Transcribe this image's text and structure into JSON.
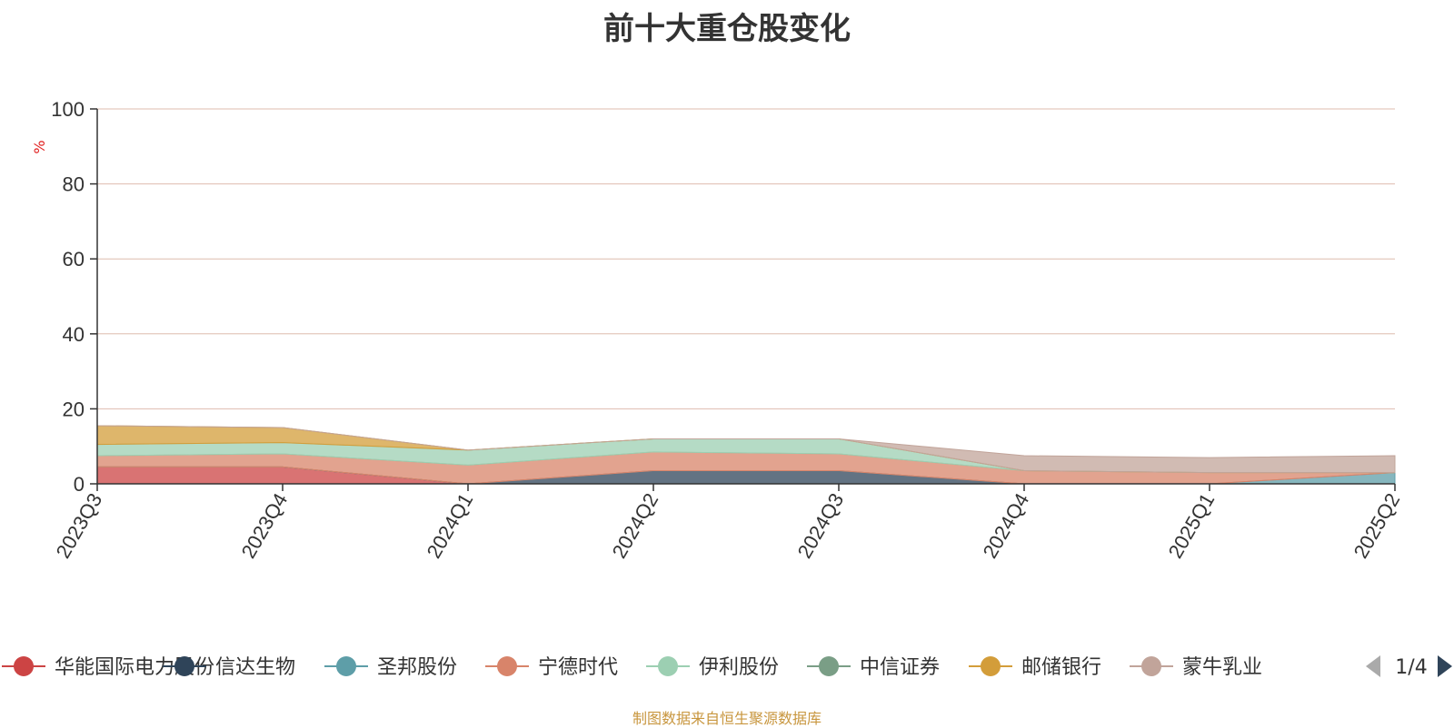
{
  "chart_data": {
    "type": "area",
    "title": "前十大重仓股变化",
    "ylabel": "%",
    "ylim": [
      0,
      100
    ],
    "yticks": [
      0,
      20,
      40,
      60,
      80,
      100
    ],
    "categories": [
      "2023Q3",
      "2023Q4",
      "2024Q1",
      "2024Q2",
      "2024Q3",
      "2024Q4",
      "2025Q1",
      "2025Q2"
    ],
    "grid": true,
    "legend_position": "bottom",
    "series": [
      {
        "name": "华能国际电力股份",
        "color": "#cc4444",
        "values": [
          4.5,
          4.5,
          0,
          0,
          0,
          0,
          0,
          0
        ]
      },
      {
        "name": "信达生物",
        "color": "#2f4459",
        "values": [
          0,
          0,
          0,
          3.5,
          3.5,
          0,
          0,
          0
        ]
      },
      {
        "name": "圣邦股份",
        "color": "#5e9ea8",
        "values": [
          0,
          0,
          0,
          0,
          0,
          0,
          0,
          3
        ]
      },
      {
        "name": "宁德时代",
        "color": "#d8846a",
        "values": [
          3,
          3.5,
          5,
          5,
          4.5,
          3.5,
          3,
          0
        ]
      },
      {
        "name": "伊利股份",
        "color": "#9ccfb2",
        "values": [
          3,
          3,
          4,
          3.5,
          4,
          0,
          0,
          0
        ]
      },
      {
        "name": "中信证券",
        "color": "#7a9e86",
        "values": [
          0,
          0,
          0,
          0,
          0,
          0,
          0,
          0
        ]
      },
      {
        "name": "邮储银行",
        "color": "#d39d3a",
        "values": [
          5,
          4,
          0,
          0,
          0,
          0,
          0,
          0
        ]
      },
      {
        "name": "蒙牛乳业",
        "color": "#c1a49a",
        "values": [
          0,
          0,
          0,
          0,
          0,
          4,
          4,
          4.5
        ]
      }
    ],
    "legend_page": "1/4"
  },
  "footer_text": "制图数据来自恒生聚源数据库"
}
